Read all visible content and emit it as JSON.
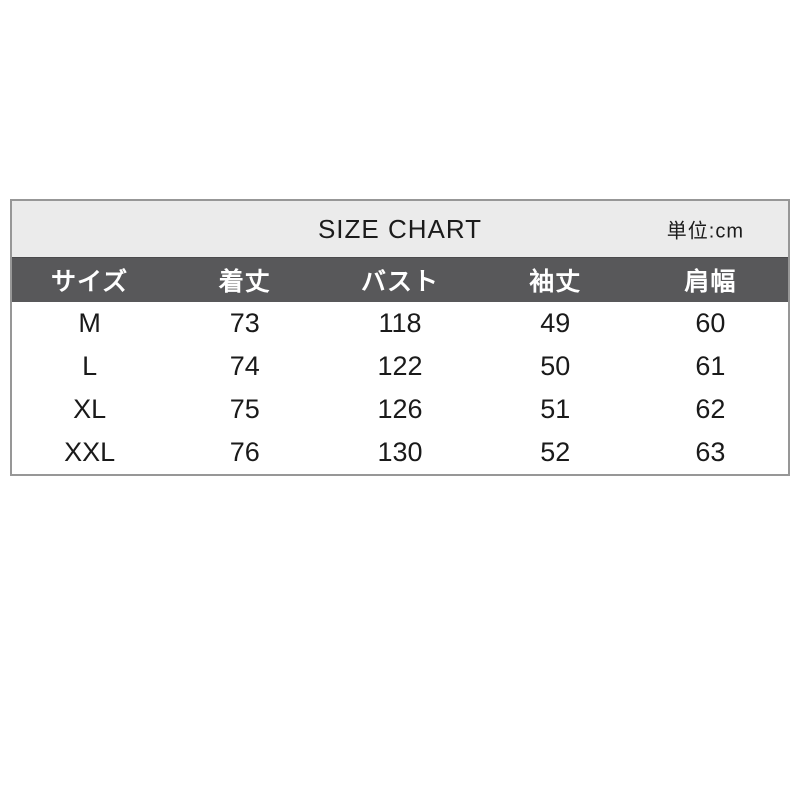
{
  "chart_data": {
    "type": "table",
    "title": "SIZE CHART",
    "unit_label": "単位:cm",
    "unit": "cm",
    "columns": [
      "サイズ",
      "着丈",
      "バスト",
      "袖丈",
      "肩幅"
    ],
    "rows": [
      [
        "M",
        73,
        118,
        49,
        60
      ],
      [
        "L",
        74,
        122,
        50,
        61
      ],
      [
        "XL",
        75,
        126,
        51,
        62
      ],
      [
        "XXL",
        76,
        130,
        52,
        63
      ]
    ]
  },
  "colors": {
    "page_bg": "#ffffff",
    "title_band_bg": "#ebebeb",
    "header_bg": "#58585a",
    "header_text": "#ffffff",
    "body_text": "#1a1a1a",
    "border": "#979797"
  }
}
